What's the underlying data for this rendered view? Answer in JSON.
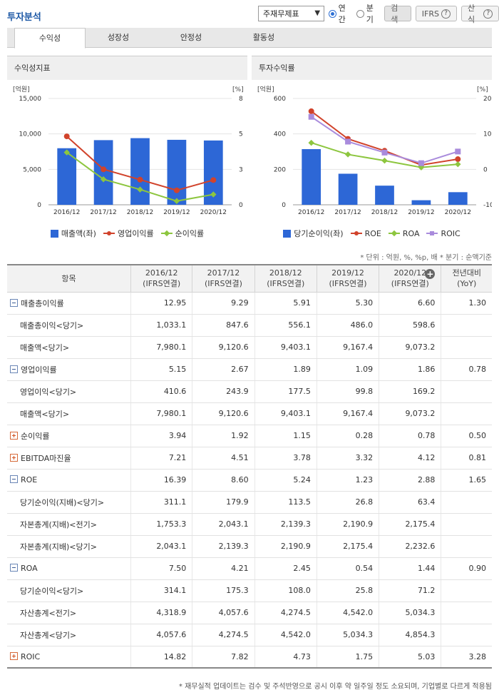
{
  "page_title": "투자분석",
  "controls": {
    "select_value": "주재무제표",
    "radio_annual": "연간",
    "radio_quarter": "분기",
    "search_label": "검색",
    "ifrs_label": "IFRS",
    "formula_label": "산식"
  },
  "tabs": [
    "수익성",
    "성장성",
    "안정성",
    "활동성"
  ],
  "left_panel": {
    "title": "수익성지표",
    "unit_left": "[억원]",
    "unit_right": "[%]",
    "legend": [
      "매출액(좌)",
      "영업이익률",
      "순이익률"
    ]
  },
  "right_panel": {
    "title": "투자수익률",
    "unit_left": "[억원]",
    "unit_right": "[%]",
    "legend": [
      "당기순이익(좌)",
      "ROE",
      "ROA",
      "ROIC"
    ]
  },
  "chart_data": [
    {
      "type": "bar",
      "categories": [
        "2016/12",
        "2017/12",
        "2018/12",
        "2019/12",
        "2020/12"
      ],
      "y_left_ticks": [
        "0",
        "5,000",
        "10,000",
        "15,000"
      ],
      "y_right_ticks": [
        "0",
        "3",
        "5",
        "8"
      ],
      "ylim_left": [
        0,
        15000
      ],
      "ylim_right": [
        0,
        8
      ],
      "series": [
        {
          "name": "매출액(좌)",
          "kind": "bar",
          "axis": "left",
          "color": "#2d67d6",
          "values": [
            7980.1,
            9120.6,
            9403.1,
            9167.4,
            9073.2
          ]
        },
        {
          "name": "영업이익률",
          "kind": "line",
          "axis": "right",
          "color": "#d1432b",
          "marker": "circle",
          "values": [
            5.15,
            2.67,
            1.89,
            1.09,
            1.86
          ]
        },
        {
          "name": "순이익률",
          "kind": "line",
          "axis": "right",
          "color": "#8dc63f",
          "marker": "diamond",
          "values": [
            3.94,
            1.92,
            1.15,
            0.28,
            0.78
          ]
        }
      ]
    },
    {
      "type": "bar",
      "categories": [
        "2016/12",
        "2017/12",
        "2018/12",
        "2019/12",
        "2020/12"
      ],
      "y_left_ticks": [
        "0",
        "200",
        "400",
        "600"
      ],
      "y_right_ticks": [
        "-10",
        "0",
        "10",
        "20"
      ],
      "ylim_left": [
        0,
        600
      ],
      "ylim_right": [
        -10,
        20
      ],
      "series": [
        {
          "name": "당기순이익(좌)",
          "kind": "bar",
          "axis": "left",
          "color": "#2d67d6",
          "values": [
            314.1,
            175.3,
            108.0,
            25.8,
            71.2
          ]
        },
        {
          "name": "ROE",
          "kind": "line",
          "axis": "right",
          "color": "#d1432b",
          "marker": "circle",
          "values": [
            16.39,
            8.6,
            5.24,
            1.23,
            2.88
          ]
        },
        {
          "name": "ROA",
          "kind": "line",
          "axis": "right",
          "color": "#8dc63f",
          "marker": "diamond",
          "values": [
            7.5,
            4.21,
            2.45,
            0.54,
            1.44
          ]
        },
        {
          "name": "ROIC",
          "kind": "line",
          "axis": "right",
          "color": "#a98bdc",
          "marker": "square",
          "values": [
            14.82,
            7.82,
            4.73,
            1.75,
            5.03
          ]
        }
      ]
    }
  ],
  "unit_note": "* 단위 : 억원, %, %p, 배   * 분기 : 순액기준",
  "table": {
    "header_item": "항목",
    "columns": [
      [
        "2016/12",
        "(IFRS연결)"
      ],
      [
        "2017/12",
        "(IFRS연결)"
      ],
      [
        "2018/12",
        "(IFRS연결)"
      ],
      [
        "2019/12",
        "(IFRS연결)"
      ],
      [
        "2020/12",
        "(IFRS연결)"
      ],
      [
        "전년대비",
        "(YoY)"
      ]
    ],
    "rows": [
      {
        "label": "매출총이익률",
        "level": "main",
        "toggle": "minus",
        "values": [
          "12.95",
          "9.29",
          "5.91",
          "5.30",
          "6.60",
          "1.30"
        ]
      },
      {
        "label": "매출총이익<당기>",
        "level": "sub",
        "values": [
          "1,033.1",
          "847.6",
          "556.1",
          "486.0",
          "598.6",
          ""
        ]
      },
      {
        "label": "매출액<당기>",
        "level": "sub",
        "values": [
          "7,980.1",
          "9,120.6",
          "9,403.1",
          "9,167.4",
          "9,073.2",
          ""
        ]
      },
      {
        "label": "영업이익률",
        "level": "main",
        "toggle": "minus",
        "values": [
          "5.15",
          "2.67",
          "1.89",
          "1.09",
          "1.86",
          "0.78"
        ]
      },
      {
        "label": "영업이익<당기>",
        "level": "sub",
        "values": [
          "410.6",
          "243.9",
          "177.5",
          "99.8",
          "169.2",
          ""
        ]
      },
      {
        "label": "매출액<당기>",
        "level": "sub",
        "values": [
          "7,980.1",
          "9,120.6",
          "9,403.1",
          "9,167.4",
          "9,073.2",
          ""
        ]
      },
      {
        "label": "순이익률",
        "level": "main",
        "toggle": "plus",
        "values": [
          "3.94",
          "1.92",
          "1.15",
          "0.28",
          "0.78",
          "0.50"
        ]
      },
      {
        "label": "EBITDA마진율",
        "level": "main",
        "toggle": "plus",
        "values": [
          "7.21",
          "4.51",
          "3.78",
          "3.32",
          "4.12",
          "0.81"
        ]
      },
      {
        "label": "ROE",
        "level": "main",
        "toggle": "minus",
        "values": [
          "16.39",
          "8.60",
          "5.24",
          "1.23",
          "2.88",
          "1.65"
        ]
      },
      {
        "label": "당기순이익(지배)<당기>",
        "level": "sub",
        "values": [
          "311.1",
          "179.9",
          "113.5",
          "26.8",
          "63.4",
          ""
        ]
      },
      {
        "label": "자본총계(지배)<전기>",
        "level": "sub",
        "values": [
          "1,753.3",
          "2,043.1",
          "2,139.3",
          "2,190.9",
          "2,175.4",
          ""
        ]
      },
      {
        "label": "자본총계(지배)<당기>",
        "level": "sub",
        "values": [
          "2,043.1",
          "2,139.3",
          "2,190.9",
          "2,175.4",
          "2,232.6",
          ""
        ]
      },
      {
        "label": "ROA",
        "level": "main",
        "toggle": "minus",
        "values": [
          "7.50",
          "4.21",
          "2.45",
          "0.54",
          "1.44",
          "0.90"
        ]
      },
      {
        "label": "당기순이익<당기>",
        "level": "sub",
        "values": [
          "314.1",
          "175.3",
          "108.0",
          "25.8",
          "71.2",
          ""
        ]
      },
      {
        "label": "자산총계<전기>",
        "level": "sub",
        "values": [
          "4,318.9",
          "4,057.6",
          "4,274.5",
          "4,542.0",
          "5,034.3",
          ""
        ]
      },
      {
        "label": "자산총계<당기>",
        "level": "sub",
        "values": [
          "4,057.6",
          "4,274.5",
          "4,542.0",
          "5,034.3",
          "4,854.3",
          ""
        ]
      },
      {
        "label": "ROIC",
        "level": "main",
        "toggle": "plus",
        "values": [
          "14.82",
          "7.82",
          "4.73",
          "1.75",
          "5.03",
          "3.28"
        ]
      }
    ]
  },
  "footnote": "* 재무실적 업데이트는 검수 및 주석반영으로 공시 이후 약 일주일 정도 소요되며, 기업별로 다르게 적용됨"
}
